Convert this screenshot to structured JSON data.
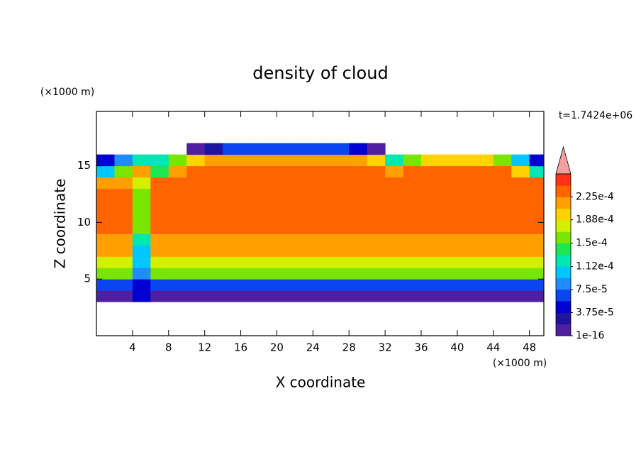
{
  "chart_data": {
    "type": "contour",
    "title": "density of cloud",
    "x_label": "X coordinate",
    "y_label": "Z coordinate",
    "x_unit": "(×1000 m)",
    "y_unit": "(×1000 m)",
    "time_label": "t=1.7424e+06",
    "xlim": [
      0,
      49.6
    ],
    "ylim": [
      0,
      19.8
    ],
    "xticks": [
      4,
      8,
      12,
      16,
      20,
      24,
      28,
      32,
      36,
      40,
      44,
      48
    ],
    "yticks": [
      5,
      10,
      15
    ],
    "x": [
      1,
      3,
      5,
      7,
      9,
      11,
      13,
      15,
      17,
      19,
      21,
      23,
      25,
      27,
      29,
      31,
      33,
      35,
      37,
      39,
      41,
      43,
      45,
      47,
      49
    ],
    "z": [
      3.5,
      4.5,
      5.5,
      6.5,
      7.5,
      8.5,
      9.5,
      10.5,
      11.5,
      12.5,
      13.5,
      14.5,
      15.5,
      16.5
    ],
    "values": [
      [
        1e-05,
        1e-05,
        5e-05,
        1e-05,
        1e-05,
        1e-05,
        1e-05,
        1e-05,
        1e-05,
        1e-05,
        1e-05,
        1e-05,
        1e-05,
        1e-05,
        1e-05,
        1e-05,
        1e-05,
        1e-05,
        1e-05,
        1e-05,
        1e-05,
        1e-05,
        1e-05,
        1e-05,
        1e-05
      ],
      [
        6e-05,
        6e-05,
        4e-05,
        6e-05,
        6e-05,
        6e-05,
        6e-05,
        6e-05,
        6e-05,
        6e-05,
        6e-05,
        6e-05,
        6e-05,
        6e-05,
        6e-05,
        6e-05,
        6e-05,
        6e-05,
        6e-05,
        6e-05,
        6e-05,
        6e-05,
        6e-05,
        6e-05,
        6e-05
      ],
      [
        0.00015,
        0.00015,
        9e-05,
        0.00015,
        0.00015,
        0.00015,
        0.00015,
        0.00015,
        0.00015,
        0.00015,
        0.00015,
        0.00015,
        0.00015,
        0.00015,
        0.00015,
        0.00015,
        0.00015,
        0.00015,
        0.00015,
        0.00015,
        0.00015,
        0.00015,
        0.00015,
        0.00015,
        0.00015
      ],
      [
        0.000185,
        0.000185,
        0.0001,
        0.000185,
        0.000185,
        0.000185,
        0.000185,
        0.000185,
        0.000185,
        0.000185,
        0.000185,
        0.000185,
        0.000185,
        0.000185,
        0.000185,
        0.000185,
        0.000185,
        0.000185,
        0.000185,
        0.000185,
        0.000185,
        0.000185,
        0.000185,
        0.000185,
        0.000185
      ],
      [
        0.00021,
        0.00021,
        0.00011,
        0.00021,
        0.00021,
        0.00021,
        0.00021,
        0.00021,
        0.00021,
        0.00021,
        0.00021,
        0.00021,
        0.00021,
        0.00021,
        0.00021,
        0.00021,
        0.00021,
        0.00021,
        0.00021,
        0.00021,
        0.00021,
        0.00021,
        0.00021,
        0.00021,
        0.00021
      ],
      [
        0.00022,
        0.00022,
        0.00012,
        0.00022,
        0.00022,
        0.00022,
        0.00022,
        0.00022,
        0.00022,
        0.00022,
        0.00022,
        0.00022,
        0.00022,
        0.00022,
        0.00022,
        0.00022,
        0.00022,
        0.00022,
        0.00022,
        0.00022,
        0.00022,
        0.00022,
        0.00022,
        0.00022,
        0.00022
      ],
      [
        0.00023,
        0.00023,
        0.00016,
        0.00023,
        0.00023,
        0.00023,
        0.00023,
        0.00023,
        0.00023,
        0.00023,
        0.00023,
        0.00023,
        0.00023,
        0.00023,
        0.00023,
        0.00023,
        0.00023,
        0.00023,
        0.00023,
        0.00023,
        0.00023,
        0.00023,
        0.00023,
        0.00023,
        0.00023
      ],
      [
        0.00023,
        0.00023,
        0.00016,
        0.00023,
        0.00023,
        0.00023,
        0.00023,
        0.00023,
        0.00023,
        0.00023,
        0.00023,
        0.00023,
        0.00023,
        0.00023,
        0.00023,
        0.00023,
        0.00023,
        0.00023,
        0.00023,
        0.00023,
        0.00023,
        0.00023,
        0.00023,
        0.00023,
        0.00023
      ],
      [
        0.00023,
        0.00023,
        0.00016,
        0.00023,
        0.00023,
        0.00023,
        0.00023,
        0.00023,
        0.00023,
        0.00023,
        0.00023,
        0.00023,
        0.00023,
        0.00023,
        0.00023,
        0.00023,
        0.00023,
        0.00023,
        0.00023,
        0.00023,
        0.00023,
        0.00023,
        0.00023,
        0.00023,
        0.00023
      ],
      [
        0.00023,
        0.00023,
        0.00016,
        0.00023,
        0.00023,
        0.00023,
        0.00023,
        0.00023,
        0.00023,
        0.00023,
        0.00023,
        0.00023,
        0.00023,
        0.00023,
        0.00023,
        0.00023,
        0.00023,
        0.00023,
        0.00023,
        0.00023,
        0.00023,
        0.00023,
        0.00023,
        0.00023,
        0.00023
      ],
      [
        0.00021,
        0.00022,
        0.00018,
        0.00023,
        0.00023,
        0.00023,
        0.00023,
        0.00023,
        0.00023,
        0.00023,
        0.00023,
        0.00023,
        0.00023,
        0.00023,
        0.00023,
        0.00023,
        0.00023,
        0.00023,
        0.00023,
        0.00023,
        0.00023,
        0.00023,
        0.00023,
        0.00023,
        0.00023
      ],
      [
        0.00011,
        0.00015,
        0.00021,
        0.00014,
        0.00022,
        0.00023,
        0.00023,
        0.00023,
        0.00023,
        0.00023,
        0.00023,
        0.00023,
        0.00023,
        0.00023,
        0.00023,
        0.00023,
        0.00022,
        0.00023,
        0.00023,
        0.00023,
        0.00023,
        0.00023,
        0.00023,
        0.0002,
        0.00013
      ],
      [
        5e-05,
        8e-05,
        0.00012,
        0.00013,
        0.00016,
        0.00019,
        0.000215,
        0.000215,
        0.000215,
        0.000215,
        0.000215,
        0.000215,
        0.000215,
        0.000215,
        0.000215,
        0.00019,
        0.00012,
        0.00016,
        0.00019,
        0.00019,
        0.00019,
        0.00019,
        0.00016,
        0.0001,
        4e-05
      ],
      [
        null,
        null,
        null,
        null,
        null,
        1e-05,
        3e-05,
        6e-05,
        6e-05,
        6e-05,
        6e-05,
        6e-05,
        6e-05,
        6e-05,
        4e-05,
        1e-05,
        null,
        null,
        null,
        null,
        null,
        null,
        null,
        null,
        null
      ]
    ],
    "colorbar": {
      "levels": [
        1e-16,
        1.875e-05,
        3.75e-05,
        5.625e-05,
        7.5e-05,
        9.375e-05,
        0.0001125,
        0.00013125,
        0.00015,
        0.00016875,
        0.0001875,
        0.00020625,
        0.000225,
        0.00024375,
        0.0002625
      ],
      "colors": [
        "#501ea0",
        "#1e14a0",
        "#0000d2",
        "#0a46f0",
        "#1e8cff",
        "#00c8ff",
        "#00e6b4",
        "#1ee650",
        "#78e600",
        "#d2f000",
        "#ffd200",
        "#ffa000",
        "#ff6400",
        "#ff3218"
      ],
      "extend_color": "#f5a0a0",
      "ticks": [
        {
          "value": 1e-16,
          "label": "1e-16"
        },
        {
          "value": 3.75e-05,
          "label": "3.75e-5"
        },
        {
          "value": 7.5e-05,
          "label": "7.5e-5"
        },
        {
          "value": 0.000112,
          "label": "1.12e-4"
        },
        {
          "value": 0.00015,
          "label": "1.5e-4"
        },
        {
          "value": 0.000188,
          "label": "1.88e-4"
        },
        {
          "value": 0.000225,
          "label": "2.25e-4"
        }
      ]
    }
  }
}
